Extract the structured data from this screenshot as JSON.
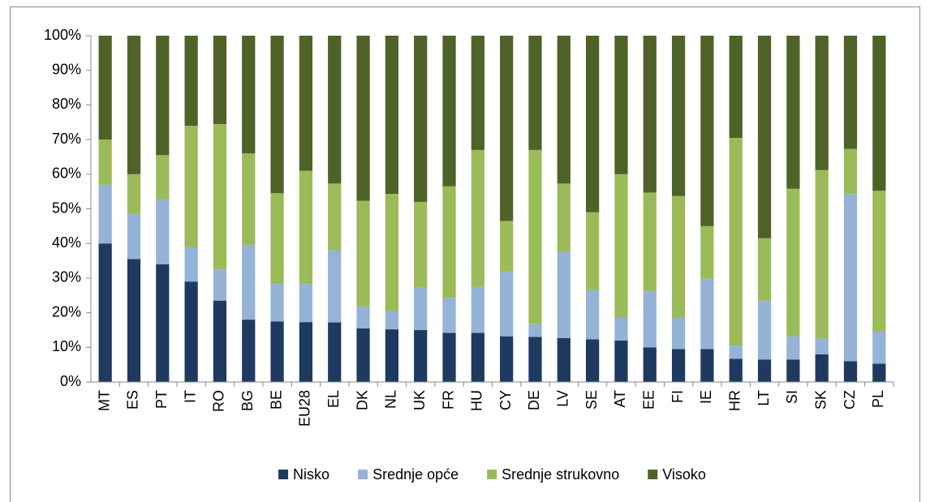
{
  "chart_data": {
    "type": "stacked_bar",
    "categories": [
      "MT",
      "ES",
      "PT",
      "IT",
      "RO",
      "BG",
      "BE",
      "EU28",
      "EL",
      "DK",
      "NL",
      "UK",
      "FR",
      "HU",
      "CY",
      "DE",
      "LV",
      "SE",
      "AT",
      "EE",
      "FI",
      "IE",
      "HR",
      "LT",
      "SI",
      "SK",
      "CZ",
      "PL"
    ],
    "series": [
      {
        "name": "Nisko",
        "color": "#1f3a60",
        "values": [
          40,
          35.5,
          34,
          29,
          23.5,
          18,
          17.5,
          17.3,
          17.2,
          15.5,
          15.2,
          15,
          14.2,
          14.2,
          13.2,
          13,
          12.7,
          12.3,
          12,
          10,
          9.5,
          9.5,
          6.7,
          6.5,
          6.5,
          8,
          6,
          5.3
        ]
      },
      {
        "name": "Srednje opće",
        "color": "#95b3d7",
        "values": [
          17,
          13.2,
          18.7,
          10,
          9,
          21.5,
          10.8,
          11,
          20.8,
          6.3,
          5.3,
          12.3,
          10.1,
          13.3,
          18.6,
          3.8,
          24.8,
          14.2,
          6.5,
          16.3,
          9,
          20.3,
          3.8,
          17,
          6.7,
          4.5,
          48.3,
          9.2
        ]
      },
      {
        "name": "Srednje strukovno",
        "color": "#9bbb59",
        "values": [
          13,
          11.3,
          12.8,
          35,
          42,
          26.5,
          26.2,
          32.7,
          19.3,
          30.5,
          33.8,
          24.7,
          32.2,
          39.5,
          14.7,
          50.2,
          19.8,
          22.5,
          41.5,
          28.4,
          35.2,
          15.2,
          60,
          18,
          42.6,
          48.7,
          13,
          40.7
        ]
      },
      {
        "name": "Visoko",
        "color": "#4f6228",
        "values": [
          30,
          40,
          34.5,
          26,
          25.5,
          34,
          45.5,
          39,
          42.7,
          47.7,
          45.7,
          48,
          43.5,
          33,
          53.5,
          33,
          42.7,
          51,
          40,
          45.3,
          46.3,
          55,
          29.5,
          58.5,
          44.2,
          38.8,
          32.7,
          44.8
        ]
      }
    ],
    "ylim": [
      0,
      100
    ],
    "yticks": [
      {
        "value": 0,
        "label": "0%"
      },
      {
        "value": 10,
        "label": "10%"
      },
      {
        "value": 20,
        "label": "20%"
      },
      {
        "value": 30,
        "label": "30%"
      },
      {
        "value": 40,
        "label": "40%"
      },
      {
        "value": 50,
        "label": "50%"
      },
      {
        "value": 60,
        "label": "60%"
      },
      {
        "value": 70,
        "label": "70%"
      },
      {
        "value": 80,
        "label": "80%"
      },
      {
        "value": 90,
        "label": "90%"
      },
      {
        "value": 100,
        "label": "100%"
      }
    ],
    "grid": false,
    "legend": "bottom"
  }
}
